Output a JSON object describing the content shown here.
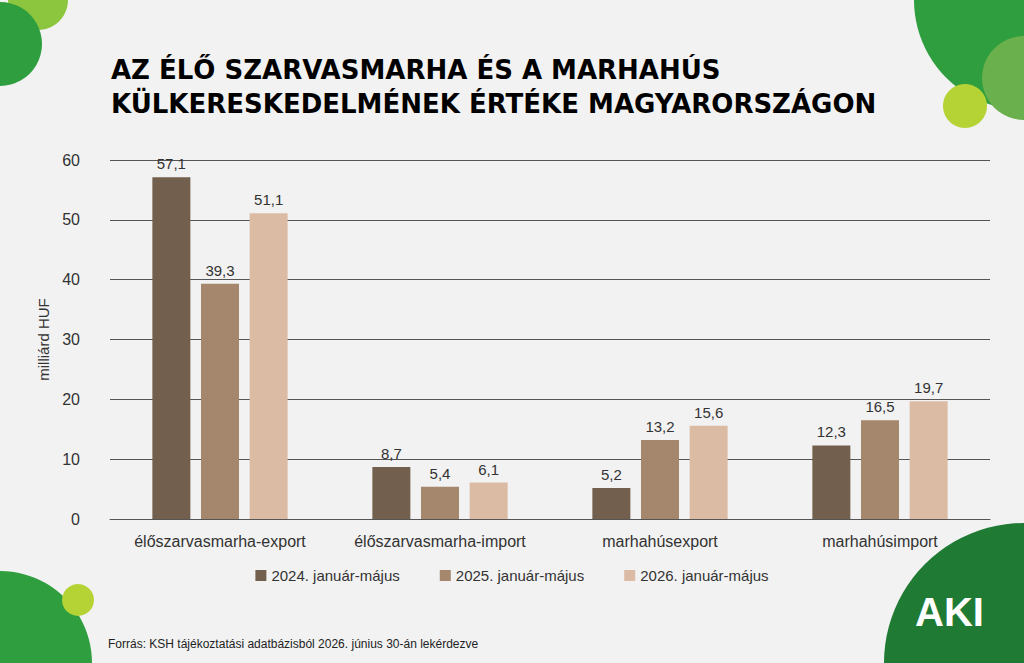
{
  "chart_data": {
    "type": "bar",
    "title": "AZ ÉLŐ SZARVASMARHA ÉS A MARHAHÚS\nKÜLKERESKEDELMÉNEK ÉRTÉKE MAGYARORSZÁGON",
    "y_label": "milliárd HUF",
    "source": "Forrás: KSH tájékoztatási adatbázisból 2026. június 30-án lekérdezve",
    "logo": "AKI",
    "categories": [
      "élőszarvasmarha-export",
      "élőszarvasmarha-import",
      "marhahúsexport",
      "marhahúsimport"
    ],
    "series": [
      {
        "name": "2024. január-május",
        "color": "#735f4d",
        "values": [
          57.1,
          8.7,
          5.2,
          12.3
        ],
        "value_labels": [
          "57,1",
          "8,7",
          "5,2",
          "12,3"
        ]
      },
      {
        "name": "2025. január-május",
        "color": "#a4876d",
        "values": [
          39.3,
          5.4,
          13.2,
          16.5
        ],
        "value_labels": [
          "39,3",
          "5,4",
          "13,2",
          "16,5"
        ]
      },
      {
        "name": "2026. január-május",
        "color": "#dcbba5",
        "values": [
          51.1,
          6.1,
          15.6,
          19.7
        ],
        "value_labels": [
          "51,1",
          "6,1",
          "15,6",
          "19,7"
        ]
      }
    ],
    "ylim": [
      0,
      60
    ],
    "yticks": [
      0,
      10,
      20,
      30,
      40,
      50,
      60
    ],
    "grid": true,
    "legend": "bottom",
    "data_labels": true
  }
}
